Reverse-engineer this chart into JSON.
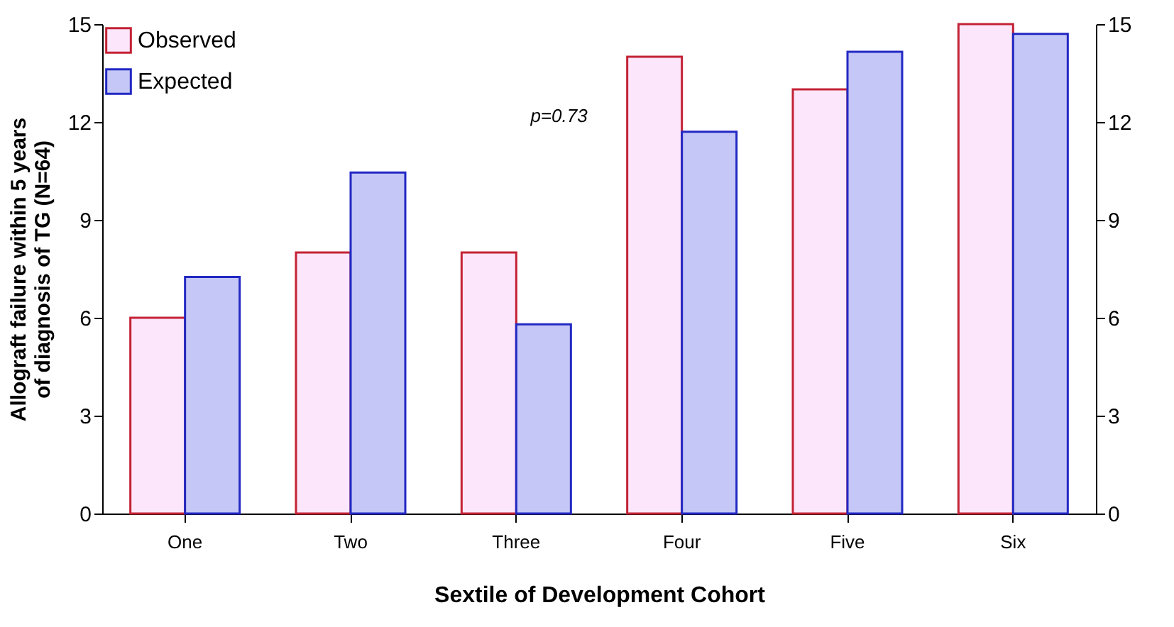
{
  "chart_data": {
    "type": "bar",
    "xlabel": "Sextile of Development Cohort",
    "ylabel": "Allograft failure within 5 years of diagnosis of TG (N=64)",
    "categories": [
      "One",
      "Two",
      "Three",
      "Four",
      "Five",
      "Six"
    ],
    "series": [
      {
        "name": "Observed",
        "color": "#fce6fb",
        "values": [
          6,
          8,
          8,
          14,
          13,
          15
        ]
      },
      {
        "name": "Expected",
        "color": "#c5c7f6",
        "values": [
          7.25,
          10.45,
          5.8,
          11.7,
          14.15,
          14.7
        ]
      }
    ],
    "ylim": [
      0,
      15
    ],
    "yticks": [
      0,
      3,
      6,
      9,
      12,
      15
    ],
    "y2lim": [
      0,
      15
    ],
    "y2ticks": [
      0,
      3,
      6,
      9,
      12,
      15
    ],
    "legend": "top left",
    "grid": false,
    "annotations": [
      "p=0.73"
    ]
  }
}
